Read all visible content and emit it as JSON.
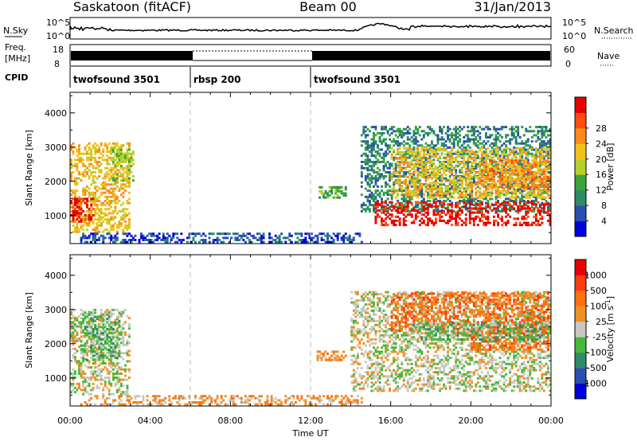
{
  "header": {
    "station": "Saskatoon (fitACF)",
    "beam": "Beam 00",
    "date": "31/Jan/2013"
  },
  "top_panels": {
    "noise": {
      "left_label": "N.Sky",
      "right_label": "N.Search",
      "ticks": [
        "10^5",
        "10^0"
      ]
    },
    "freq": {
      "left_label_1": "Freq.",
      "left_label_2": "[MHz]",
      "right_label": "Nave",
      "left_ticks": [
        "18",
        "8"
      ],
      "right_ticks": [
        "60",
        "0"
      ]
    },
    "cpid": {
      "label": "CPID",
      "segments": [
        {
          "name": "twofsound 3501",
          "start": 0,
          "end": 6
        },
        {
          "name": "rbsp 200",
          "start": 6,
          "end": 12
        },
        {
          "name": "twofsound 3501",
          "start": 12,
          "end": 24
        }
      ]
    }
  },
  "chart_data": [
    {
      "type": "heatmap",
      "title": "Power",
      "xlabel": "Time UT",
      "ylabel": "Slant Range [km]",
      "xlim": [
        0,
        24
      ],
      "ylim": [
        180,
        4600
      ],
      "x_ticks": [
        "00:00",
        "04:00",
        "08:00",
        "12:00",
        "16:00",
        "20:00",
        "00:00"
      ],
      "y_ticks": [
        1000,
        2000,
        3000,
        4000
      ],
      "colorbar": {
        "label": "Power [dB]",
        "ticks": [
          "4",
          "8",
          "12",
          "16",
          "20",
          "24",
          "28"
        ],
        "colors": [
          "#0000dd",
          "#2a4fb0",
          "#2f8a66",
          "#3aa63a",
          "#b6d02a",
          "#f2c21a",
          "#ff8a1a",
          "#ff4a10",
          "#e80000"
        ]
      },
      "dashed_lines": [
        6,
        12
      ],
      "regions": [
        {
          "t0": 0.0,
          "t1": 3.0,
          "r0": 500,
          "r1": 3100,
          "level": 5
        },
        {
          "t0": 0.0,
          "t1": 1.2,
          "r0": 800,
          "r1": 1500,
          "level": 8
        },
        {
          "t0": 2.0,
          "t1": 3.2,
          "r0": 2000,
          "r1": 3000,
          "level": 4
        },
        {
          "t0": 0.5,
          "t1": 14.5,
          "r0": 200,
          "r1": 450,
          "level": 1
        },
        {
          "t0": 12.3,
          "t1": 13.7,
          "r0": 1500,
          "r1": 1850,
          "level": 3
        },
        {
          "t0": 14.5,
          "t1": 24.0,
          "r0": 1100,
          "r1": 3600,
          "level": 2
        },
        {
          "t0": 15.2,
          "t1": 24.0,
          "r0": 700,
          "r1": 1400,
          "level": 8
        },
        {
          "t0": 16.0,
          "t1": 24.0,
          "r0": 1500,
          "r1": 3000,
          "level": 5
        },
        {
          "t0": 20.5,
          "t1": 24.0,
          "r0": 1800,
          "r1": 2600,
          "level": 6
        }
      ]
    },
    {
      "type": "heatmap",
      "title": "Velocity",
      "xlabel": "Time UT",
      "ylabel": "Slant Range [km]",
      "xlim": [
        0,
        24
      ],
      "ylim": [
        180,
        4600
      ],
      "x_ticks": [
        "00:00",
        "04:00",
        "08:00",
        "12:00",
        "16:00",
        "20:00",
        "00:00"
      ],
      "y_ticks": [
        1000,
        2000,
        3000,
        4000
      ],
      "colorbar": {
        "label": "Velocity [m s",
        "label_sup": "-1",
        "label_end": "]",
        "ticks": [
          "1000",
          "500",
          "100",
          "25",
          "-25",
          "-100",
          "-500",
          "-1000"
        ],
        "colors": [
          "#0000dd",
          "#2a4fb0",
          "#2f8a66",
          "#46b83a",
          "#c8c8c0",
          "#f09020",
          "#ff7010",
          "#ff3a10",
          "#e80000"
        ]
      },
      "dashed_lines": [
        6,
        12
      ],
      "regions": [
        {
          "t0": 0.0,
          "t1": 3.0,
          "r0": 500,
          "r1": 3000,
          "level": 4
        },
        {
          "t0": 0.5,
          "t1": 2.5,
          "r0": 1500,
          "r1": 2900,
          "level": 3
        },
        {
          "t0": 0.5,
          "t1": 14.5,
          "r0": 200,
          "r1": 450,
          "level": 5
        },
        {
          "t0": 12.3,
          "t1": 13.7,
          "r0": 1500,
          "r1": 1800,
          "level": 5
        },
        {
          "t0": 14.0,
          "t1": 24.0,
          "r0": 600,
          "r1": 3500,
          "level": 4
        },
        {
          "t0": 16.0,
          "t1": 24.0,
          "r0": 2300,
          "r1": 3500,
          "level": 6
        },
        {
          "t0": 20.0,
          "t1": 24.0,
          "r0": 1800,
          "r1": 2500,
          "level": 6
        },
        {
          "t0": 17.0,
          "t1": 24.0,
          "r0": 2100,
          "r1": 2600,
          "level": 3
        }
      ]
    }
  ]
}
